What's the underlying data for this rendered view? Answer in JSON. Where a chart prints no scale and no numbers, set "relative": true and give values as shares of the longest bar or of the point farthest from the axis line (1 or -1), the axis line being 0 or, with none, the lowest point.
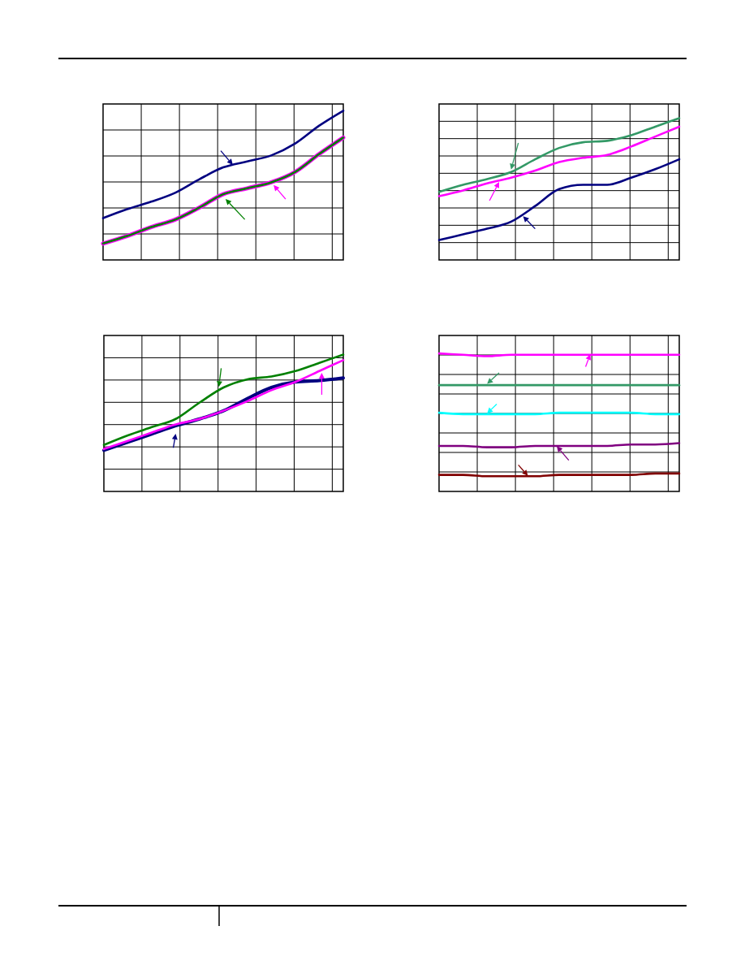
{
  "chart_data": [
    {
      "type": "line",
      "relative": true,
      "grid": true,
      "categories": [
        null,
        null,
        null,
        null,
        null,
        null,
        null,
        null,
        null,
        null,
        null
      ],
      "series": [
        {
          "color": "#000080",
          "values": [
            0.28,
            0.34,
            0.39,
            0.45,
            0.54,
            0.62,
            0.66,
            0.7,
            0.78,
            0.9,
            1
          ]
        },
        {
          "color": "#ff00ff",
          "values": [
            0.11,
            0.16,
            0.22,
            0.27,
            0.35,
            0.44,
            0.48,
            0.52,
            0.59,
            0.71,
            0.82
          ]
        },
        {
          "color": "#008000",
          "values": [
            0.11,
            0.16,
            0.22,
            0.27,
            0.35,
            0.44,
            0.48,
            0.52,
            0.59,
            0.71,
            0.82
          ]
        }
      ]
    },
    {
      "type": "line",
      "relative": true,
      "grid": true,
      "categories": [
        null,
        null,
        null,
        null,
        null,
        null,
        null,
        null,
        null,
        null,
        null
      ],
      "series": [
        {
          "color": "#339966",
          "values": [
            0.48,
            0.53,
            0.57,
            0.62,
            0.71,
            0.79,
            0.83,
            0.84,
            0.88,
            0.94,
            1
          ]
        },
        {
          "color": "#ff00ff",
          "values": [
            0.45,
            0.49,
            0.54,
            0.58,
            0.63,
            0.69,
            0.72,
            0.74,
            0.8,
            0.87,
            0.94
          ]
        },
        {
          "color": "#000080",
          "values": [
            0.14,
            0.18,
            0.22,
            0.27,
            0.38,
            0.5,
            0.53,
            0.53,
            0.58,
            0.64,
            0.71
          ]
        }
      ]
    },
    {
      "type": "line",
      "relative": true,
      "grid": true,
      "categories": [
        null,
        null,
        null,
        null,
        null,
        null,
        null,
        null,
        null,
        null,
        null
      ],
      "series": [
        {
          "color": "#000080",
          "values": [
            0.3,
            0.36,
            0.42,
            0.48,
            0.53,
            0.59,
            0.68,
            0.76,
            0.8,
            0.81,
            0.83
          ]
        },
        {
          "color": "#008000",
          "values": [
            0.34,
            0.41,
            0.47,
            0.53,
            0.65,
            0.76,
            0.82,
            0.84,
            0.88,
            0.94,
            1
          ]
        },
        {
          "color": "#ff00ff",
          "values": [
            0.31,
            0.37,
            0.43,
            0.49,
            0.53,
            0.59,
            0.66,
            0.74,
            0.8,
            0.88,
            0.96
          ]
        }
      ]
    },
    {
      "type": "line",
      "relative": true,
      "grid": true,
      "categories": [
        null,
        null,
        null,
        null,
        null,
        null,
        null,
        null,
        null,
        null,
        null
      ],
      "series": [
        {
          "color": "#ff00ff",
          "values": [
            1,
            0.99,
            0.98,
            0.99,
            0.99,
            0.99,
            0.99,
            0.99,
            0.99,
            0.99,
            0.99
          ]
        },
        {
          "color": "#339966",
          "values": [
            0.77,
            0.77,
            0.77,
            0.77,
            0.77,
            0.77,
            0.77,
            0.77,
            0.77,
            0.77,
            0.77
          ]
        },
        {
          "color": "#00ffff",
          "values": [
            0.57,
            0.56,
            0.56,
            0.56,
            0.56,
            0.57,
            0.57,
            0.57,
            0.57,
            0.56,
            0.56
          ]
        },
        {
          "color": "#800080",
          "values": [
            0.33,
            0.33,
            0.32,
            0.32,
            0.33,
            0.33,
            0.33,
            0.33,
            0.34,
            0.34,
            0.35
          ]
        },
        {
          "color": "#800000",
          "values": [
            0.12,
            0.12,
            0.11,
            0.11,
            0.11,
            0.12,
            0.12,
            0.12,
            0.12,
            0.13,
            0.13
          ]
        }
      ]
    }
  ]
}
